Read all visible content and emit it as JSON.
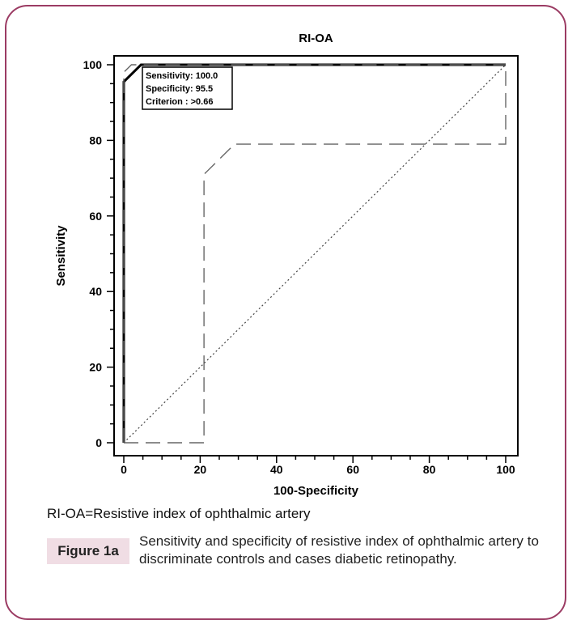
{
  "chart_data": {
    "type": "line",
    "title": "RI-OA",
    "xlabel": "100-Specificity",
    "ylabel": "Sensitivity",
    "xlim": [
      0,
      100
    ],
    "ylim": [
      0,
      100
    ],
    "x_ticks": [
      0,
      20,
      40,
      60,
      80,
      100
    ],
    "y_ticks": [
      0,
      20,
      40,
      60,
      80,
      100
    ],
    "series": [
      {
        "style": "solid",
        "x": [
          0,
          0,
          0,
          4.5,
          100
        ],
        "y": [
          0,
          95.5,
          95.5,
          100,
          100
        ]
      },
      {
        "style": "dashed",
        "x": [
          0,
          21,
          21,
          29,
          100,
          100
        ],
        "y": [
          0,
          0,
          71,
          79,
          79,
          100
        ]
      },
      {
        "style": "dashed",
        "x": [
          0,
          0,
          2,
          100
        ],
        "y": [
          0,
          98,
          100,
          100
        ]
      },
      {
        "style": "dotted",
        "x": [
          0,
          100
        ],
        "y": [
          0,
          100
        ]
      }
    ],
    "annotation": {
      "lines": [
        "Sensitivity: 100.0",
        "Specificity: 95.5",
        "Criterion : >0.66"
      ]
    },
    "colors": {
      "line": "#000000",
      "frame": "#9b3b63",
      "label_bg": "#f0dde4"
    }
  },
  "caption": {
    "note": "RI-OA=Resistive index of ophthalmic artery",
    "figure_label": "Figure 1a",
    "text": "Sensitivity and specificity of resistive index of ophthalmic artery to discriminate controls and cases diabetic retinopathy."
  }
}
